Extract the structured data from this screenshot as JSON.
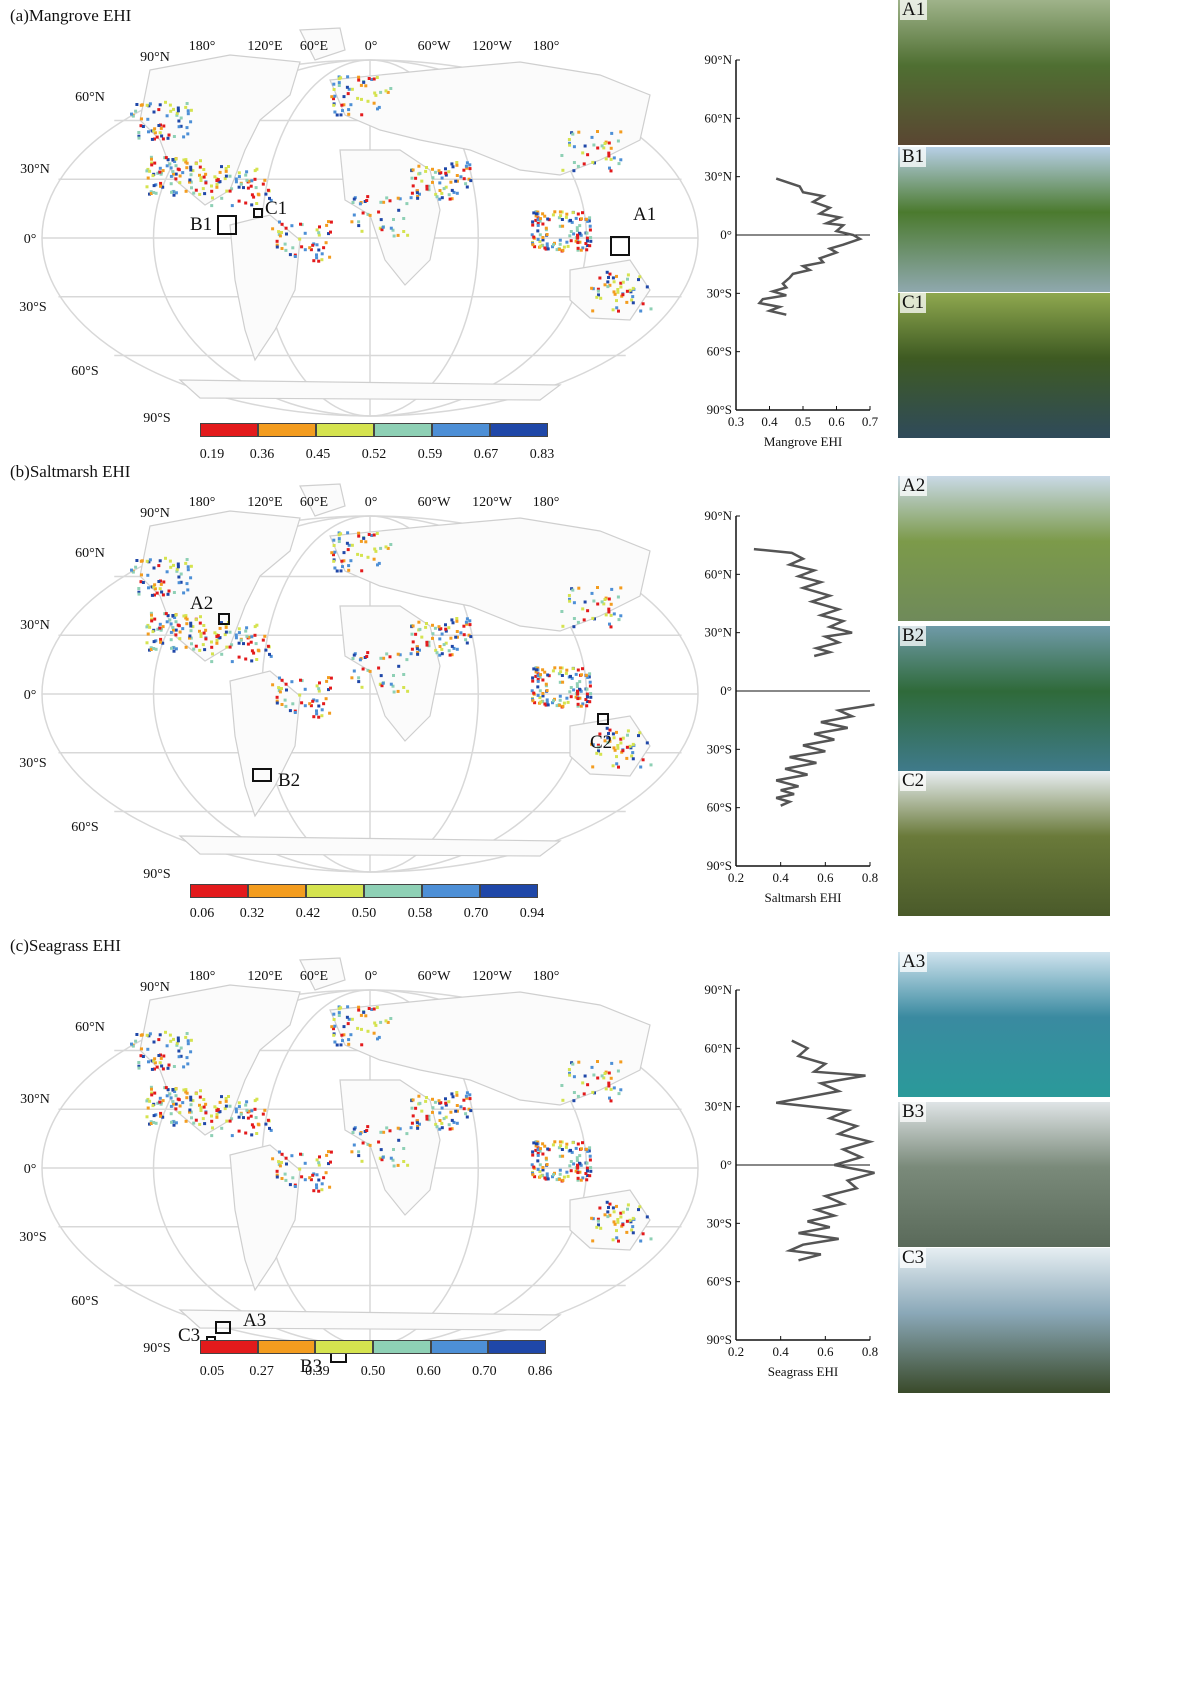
{
  "colors": {
    "ramp": [
      "#e31a1c",
      "#f39c1f",
      "#d5e34f",
      "#8ed0b5",
      "#4d8fd6",
      "#1f47a8"
    ],
    "land_outline": "#cfcfcf",
    "grid": "#d8d8d8",
    "profile_line": "#555555"
  },
  "panels": [
    {
      "id": "a",
      "title": "(a)Mangrove EHI",
      "lon_labels": [
        "180°",
        "120°E",
        "60°E",
        "0°",
        "60°W",
        "120°W",
        "180°"
      ],
      "lat_labels": [
        "90°N",
        "60°N",
        "30°N",
        "0°",
        "30°S",
        "60°S",
        "90°S"
      ],
      "colorbar_ticks": [
        "0.19",
        "0.36",
        "0.45",
        "0.52",
        "0.59",
        "0.67",
        "0.83"
      ],
      "boxes": [
        {
          "label": "A1",
          "name": "box-a1"
        },
        {
          "label": "B1",
          "name": "box-b1"
        },
        {
          "label": "C1",
          "name": "box-c1"
        }
      ],
      "photos": [
        {
          "label": "A1",
          "icon": "mangrove-roots-photo",
          "sky": "#9fb38a",
          "mid": "#4f6f32",
          "ground": "#5a4632"
        },
        {
          "label": "B1",
          "icon": "mangrove-shore-photo",
          "sky": "#b7cfe6",
          "mid": "#4b7a2e",
          "ground": "#8fa8ae"
        },
        {
          "label": "C1",
          "icon": "mangrove-channel-photo",
          "sky": "#8fa84f",
          "mid": "#3e5a22",
          "ground": "#2f4a5a"
        }
      ]
    },
    {
      "id": "b",
      "title": "(b)Saltmarsh EHI",
      "lon_labels": [
        "180°",
        "120°E",
        "60°E",
        "0°",
        "60°W",
        "120°W",
        "180°"
      ],
      "lat_labels": [
        "90°N",
        "60°N",
        "30°N",
        "0°",
        "30°S",
        "60°S",
        "90°S"
      ],
      "colorbar_ticks": [
        "0.06",
        "0.32",
        "0.42",
        "0.50",
        "0.58",
        "0.70",
        "0.94"
      ],
      "boxes": [
        {
          "label": "A2",
          "name": "box-a2"
        },
        {
          "label": "B2",
          "name": "box-b2"
        },
        {
          "label": "C2",
          "name": "box-c2"
        }
      ],
      "photos": [
        {
          "label": "A2",
          "icon": "saltmarsh-creek-photo",
          "sky": "#c9d9e6",
          "mid": "#7c9a4a",
          "ground": "#6f8a5a"
        },
        {
          "label": "B2",
          "icon": "saltmarsh-aerial-photo",
          "sky": "#6f9aa8",
          "mid": "#2f6a3a",
          "ground": "#3f7a8a"
        },
        {
          "label": "C2",
          "icon": "saltmarsh-river-photo",
          "sky": "#e8eef2",
          "mid": "#6a7a3a",
          "ground": "#4a5a2a"
        }
      ]
    },
    {
      "id": "c",
      "title": "(c)Seagrass EHI",
      "lon_labels": [
        "180°",
        "120°E",
        "60°E",
        "0°",
        "60°W",
        "120°W",
        "180°"
      ],
      "lat_labels": [
        "90°N",
        "60°N",
        "30°N",
        "0°",
        "30°S",
        "60°S",
        "90°S"
      ],
      "colorbar_ticks": [
        "0.05",
        "0.27",
        "0.39",
        "0.50",
        "0.60",
        "0.70",
        "0.86"
      ],
      "boxes": [
        {
          "label": "A3",
          "name": "box-a3"
        },
        {
          "label": "B3",
          "name": "box-b3"
        },
        {
          "label": "C3",
          "name": "box-c3"
        }
      ],
      "photos": [
        {
          "label": "A3",
          "icon": "seagrass-coast-photo",
          "sky": "#cfe3ee",
          "mid": "#3a8aa0",
          "ground": "#2a9a9a"
        },
        {
          "label": "B3",
          "icon": "seagrass-flat-photo",
          "sky": "#dfe4e6",
          "mid": "#7a8a7a",
          "ground": "#5a6a5a"
        },
        {
          "label": "C3",
          "icon": "seagrass-island-photo",
          "sky": "#e6eef2",
          "mid": "#8aa8b8",
          "ground": "#3a4a2a"
        }
      ]
    }
  ],
  "chart_data": [
    {
      "type": "line",
      "title": "",
      "xlabel": "Mangrove EHI",
      "ylabel": "",
      "xlim": [
        0.3,
        0.7
      ],
      "xticks": [
        "0.3",
        "0.4",
        "0.5",
        "0.6",
        "0.7"
      ],
      "ylim": [
        -90,
        90
      ],
      "yticks": [
        "90°N",
        "60°N",
        "30°N",
        "0°",
        "30°S",
        "60°S",
        "90°S"
      ],
      "series": [
        {
          "x": [
            0.42,
            0.49,
            0.5,
            0.56,
            0.53,
            0.58,
            0.55,
            0.61,
            0.57,
            0.62,
            0.6,
            0.65,
            0.67,
            0.62,
            0.58,
            0.6,
            0.55,
            0.56,
            0.5,
            0.52,
            0.47,
            0.46,
            0.44,
            0.45,
            0.41,
            0.45,
            0.38,
            0.37,
            0.43,
            0.4,
            0.45
          ],
          "y": [
            29,
            25,
            22,
            20,
            17,
            14,
            11,
            9,
            6,
            5,
            2,
            0,
            -2,
            -5,
            -7,
            -9,
            -12,
            -14,
            -16,
            -18,
            -20,
            -22,
            -25,
            -27,
            -29,
            -31,
            -33,
            -35,
            -37,
            -39,
            -41
          ]
        }
      ]
    },
    {
      "type": "line",
      "title": "",
      "xlabel": "Saltmarsh EHI",
      "ylabel": "",
      "xlim": [
        0.2,
        0.8
      ],
      "xticks": [
        "0.2",
        "0.4",
        "0.6",
        "0.8"
      ],
      "ylim": [
        -90,
        90
      ],
      "yticks": [
        "90°N",
        "60°N",
        "30°N",
        "0°",
        "30°S",
        "60°S",
        "90°S"
      ],
      "series": [
        {
          "x": [
            0.28,
            0.45,
            0.5,
            0.44,
            0.55,
            0.48,
            0.58,
            0.5,
            0.62,
            0.54,
            0.66,
            0.58,
            0.68,
            0.62,
            0.72,
            0.6,
            0.66,
            0.56,
            0.62,
            0.55
          ],
          "y": [
            73,
            71,
            68,
            65,
            62,
            59,
            56,
            53,
            49,
            46,
            42,
            39,
            36,
            33,
            30,
            28,
            25,
            22,
            20,
            18
          ]
        },
        {
          "x": [
            0.82,
            0.66,
            0.72,
            0.58,
            0.7,
            0.55,
            0.64,
            0.5,
            0.6,
            0.44,
            0.56,
            0.42,
            0.52,
            0.38,
            0.48,
            0.4,
            0.46,
            0.38,
            0.44,
            0.4
          ],
          "y": [
            -7,
            -10,
            -13,
            -16,
            -19,
            -22,
            -25,
            -28,
            -31,
            -34,
            -37,
            -40,
            -43,
            -46,
            -49,
            -51,
            -53,
            -55,
            -57,
            -59
          ]
        }
      ]
    },
    {
      "type": "line",
      "title": "",
      "xlabel": "Seagrass EHI",
      "ylabel": "",
      "xlim": [
        0.2,
        0.8
      ],
      "xticks": [
        "0.2",
        "0.4",
        "0.6",
        "0.8"
      ],
      "ylim": [
        -90,
        90
      ],
      "yticks": [
        "90°N",
        "60°N",
        "30°N",
        "0°",
        "30°S",
        "60°S",
        "90°S"
      ],
      "series": [
        {
          "x": [
            0.45,
            0.52,
            0.48,
            0.6,
            0.55,
            0.78,
            0.58,
            0.66,
            0.38,
            0.7,
            0.62,
            0.74,
            0.66,
            0.8,
            0.68,
            0.76,
            0.64,
            0.82,
            0.7,
            0.74,
            0.6,
            0.68,
            0.56,
            0.64,
            0.52,
            0.62,
            0.48,
            0.66,
            0.5,
            0.44,
            0.58,
            0.48
          ],
          "y": [
            64,
            60,
            56,
            52,
            48,
            46,
            42,
            38,
            32,
            28,
            24,
            20,
            16,
            12,
            8,
            4,
            0,
            -4,
            -8,
            -12,
            -16,
            -20,
            -23,
            -26,
            -29,
            -32,
            -35,
            -38,
            -41,
            -44,
            -46,
            -49
          ]
        }
      ]
    }
  ]
}
